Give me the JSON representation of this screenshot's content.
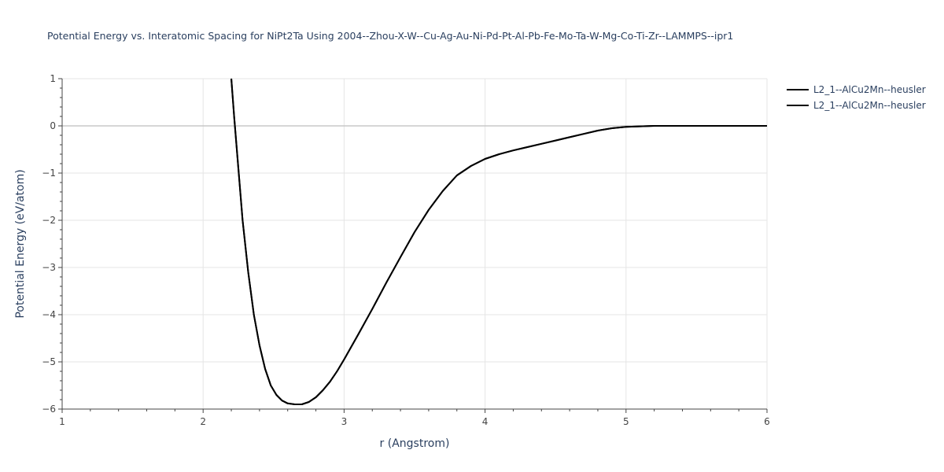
{
  "chart_data": {
    "type": "line",
    "title": "Potential Energy vs. Interatomic Spacing for NiPt2Ta Using 2004--Zhou-X-W--Cu-Ag-Au-Ni-Pd-Pt-Al-Pb-Fe-Mo-Ta-W-Mg-Co-Ti-Zr--LAMMPS--ipr1",
    "xlabel": "r (Angstrom)",
    "ylabel": "Potential Energy (eV/atom)",
    "xlim": [
      1,
      6
    ],
    "ylim": [
      -6,
      1
    ],
    "x_ticks": [
      1,
      2,
      3,
      4,
      5,
      6
    ],
    "y_ticks": [
      1,
      0,
      -1,
      -2,
      -3,
      -4,
      -5,
      -6
    ],
    "y_tick_labels": [
      "1",
      "0",
      "−1",
      "−2",
      "−3",
      "−4",
      "−5",
      "−6"
    ],
    "grid": true,
    "legend_position": "top-right",
    "series": [
      {
        "name": "L2_1--AlCu2Mn--heusler",
        "color": "#000000",
        "x": [
          2.2,
          2.22,
          2.25,
          2.28,
          2.32,
          2.36,
          2.4,
          2.44,
          2.48,
          2.52,
          2.56,
          2.6,
          2.65,
          2.7,
          2.75,
          2.8,
          2.85,
          2.9,
          2.95,
          3.0,
          3.1,
          3.2,
          3.3,
          3.4,
          3.5,
          3.6,
          3.7,
          3.8,
          3.9,
          4.0,
          4.1,
          4.2,
          4.3,
          4.4,
          4.5,
          4.6,
          4.7,
          4.8,
          4.9,
          5.0,
          5.1,
          5.2,
          5.3,
          5.5,
          5.8,
          6.0
        ],
        "y": [
          1.0,
          0.2,
          -0.9,
          -2.0,
          -3.1,
          -4.0,
          -4.65,
          -5.15,
          -5.5,
          -5.7,
          -5.82,
          -5.88,
          -5.9,
          -5.9,
          -5.85,
          -5.75,
          -5.6,
          -5.42,
          -5.2,
          -4.95,
          -4.42,
          -3.88,
          -3.32,
          -2.78,
          -2.25,
          -1.78,
          -1.38,
          -1.05,
          -0.85,
          -0.7,
          -0.6,
          -0.52,
          -0.45,
          -0.38,
          -0.31,
          -0.24,
          -0.17,
          -0.1,
          -0.05,
          -0.02,
          -0.01,
          0.0,
          0.0,
          0.0,
          0.0,
          0.0
        ]
      },
      {
        "name": "L2_1--AlCu2Mn--heusler",
        "color": "#000000",
        "x": [
          2.2,
          2.22,
          2.25,
          2.28,
          2.32,
          2.36,
          2.4,
          2.44,
          2.48,
          2.52,
          2.56,
          2.6,
          2.65,
          2.7,
          2.75,
          2.8,
          2.85,
          2.9,
          2.95,
          3.0,
          3.1,
          3.2,
          3.3,
          3.4,
          3.5,
          3.6,
          3.7,
          3.8,
          3.9,
          4.0,
          4.1,
          4.2,
          4.3,
          4.4,
          4.5,
          4.6,
          4.7,
          4.8,
          4.9,
          5.0,
          5.1,
          5.2,
          5.3,
          5.5,
          5.8,
          6.0
        ],
        "y": [
          1.0,
          0.2,
          -0.9,
          -2.0,
          -3.1,
          -4.0,
          -4.65,
          -5.15,
          -5.5,
          -5.7,
          -5.82,
          -5.88,
          -5.9,
          -5.9,
          -5.85,
          -5.75,
          -5.6,
          -5.42,
          -5.2,
          -4.95,
          -4.42,
          -3.88,
          -3.32,
          -2.78,
          -2.25,
          -1.78,
          -1.38,
          -1.05,
          -0.85,
          -0.7,
          -0.6,
          -0.52,
          -0.45,
          -0.38,
          -0.31,
          -0.24,
          -0.17,
          -0.1,
          -0.05,
          -0.02,
          -0.01,
          0.0,
          0.0,
          0.0,
          0.0,
          0.0
        ]
      }
    ]
  }
}
